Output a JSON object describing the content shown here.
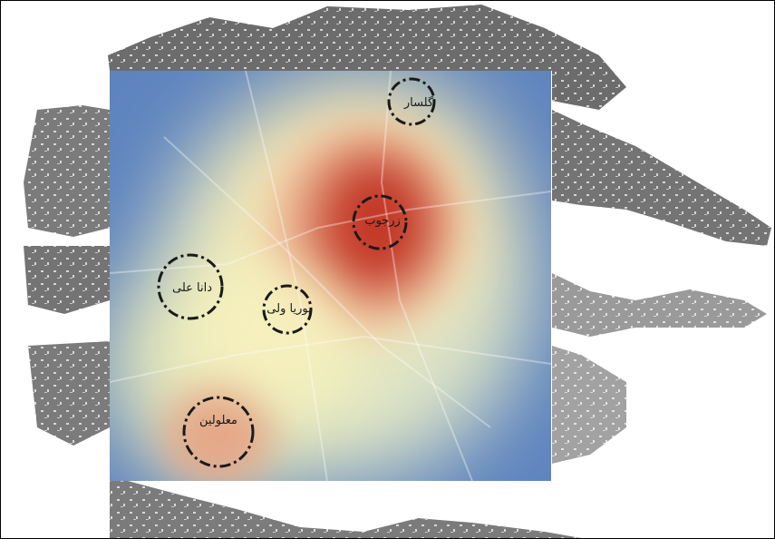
{
  "map": {
    "hotspots": [
      {
        "id": "golsar",
        "label": "گلسار"
      },
      {
        "id": "zarjoob",
        "label": "زرجوب"
      },
      {
        "id": "dana-ali",
        "label": "دانا علی"
      },
      {
        "id": "pouria-vali",
        "label": "پوریا ولی"
      },
      {
        "id": "maloulin",
        "label": "معلولین"
      }
    ],
    "colors": {
      "background": "#ffffff",
      "urban_fabric": "#5f5f5f",
      "heat_low": "#4a74b4",
      "heat_mid": "#f7f2bc",
      "heat_high": "#c0281d",
      "circle_stroke": "#1a1a1a"
    }
  }
}
